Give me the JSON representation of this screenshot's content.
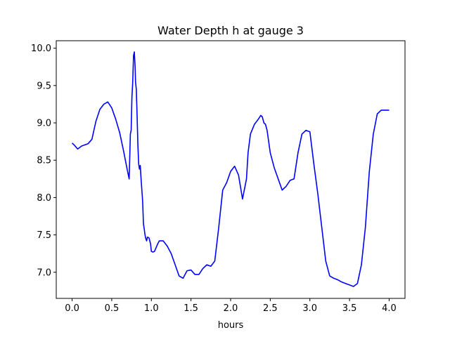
{
  "chart_data": {
    "type": "line",
    "title": "Water Depth h at gauge 3",
    "xlabel": "hours",
    "ylabel": "",
    "xlim": [
      -0.2,
      4.2
    ],
    "ylim": [
      6.65,
      10.1
    ],
    "grid": false,
    "x_ticks": [
      0.0,
      0.5,
      1.0,
      1.5,
      2.0,
      2.5,
      3.0,
      3.5,
      4.0
    ],
    "x_tick_labels": [
      "0.0",
      "0.5",
      "1.0",
      "1.5",
      "2.0",
      "2.5",
      "3.0",
      "3.5",
      "4.0"
    ],
    "y_ticks": [
      7.0,
      7.5,
      8.0,
      8.5,
      9.0,
      9.5,
      10.0
    ],
    "y_tick_labels": [
      "7.0",
      "7.5",
      "8.0",
      "8.5",
      "9.0",
      "9.5",
      "10.0"
    ],
    "series": [
      {
        "color": "#0000ff",
        "x": [
          0.0,
          0.03,
          0.07,
          0.12,
          0.2,
          0.25,
          0.3,
          0.35,
          0.4,
          0.45,
          0.5,
          0.55,
          0.6,
          0.65,
          0.7,
          0.72,
          0.735,
          0.745,
          0.755,
          0.765,
          0.775,
          0.785,
          0.795,
          0.8,
          0.81,
          0.82,
          0.83,
          0.84,
          0.85,
          0.86,
          0.87,
          0.88,
          0.89,
          0.9,
          0.91,
          0.92,
          0.93,
          0.94,
          0.95,
          0.97,
          0.99,
          1.0,
          1.02,
          1.04,
          1.06,
          1.08,
          1.1,
          1.15,
          1.2,
          1.25,
          1.3,
          1.35,
          1.4,
          1.45,
          1.5,
          1.55,
          1.6,
          1.65,
          1.7,
          1.75,
          1.8,
          1.85,
          1.9,
          1.95,
          2.0,
          2.05,
          2.1,
          2.15,
          2.2,
          2.22,
          2.25,
          2.3,
          2.35,
          2.38,
          2.4,
          2.42,
          2.44,
          2.46,
          2.5,
          2.55,
          2.6,
          2.65,
          2.7,
          2.75,
          2.8,
          2.85,
          2.9,
          2.95,
          3.0,
          3.05,
          3.1,
          3.15,
          3.2,
          3.25,
          3.3,
          3.35,
          3.4,
          3.45,
          3.5,
          3.55,
          3.6,
          3.65,
          3.7,
          3.75,
          3.8,
          3.85,
          3.9,
          3.95,
          4.0
        ],
        "y": [
          8.73,
          8.7,
          8.65,
          8.69,
          8.72,
          8.78,
          9.02,
          9.18,
          9.25,
          9.28,
          9.2,
          9.05,
          8.87,
          8.62,
          8.35,
          8.25,
          8.85,
          8.9,
          9.35,
          9.55,
          9.9,
          9.95,
          9.75,
          9.55,
          9.45,
          9.1,
          8.7,
          8.45,
          8.38,
          8.43,
          8.25,
          8.1,
          7.95,
          7.65,
          7.58,
          7.5,
          7.45,
          7.42,
          7.47,
          7.46,
          7.38,
          7.28,
          7.27,
          7.28,
          7.33,
          7.38,
          7.42,
          7.42,
          7.35,
          7.25,
          7.1,
          6.95,
          6.92,
          7.02,
          7.03,
          6.97,
          6.97,
          7.05,
          7.1,
          7.08,
          7.15,
          7.6,
          8.1,
          8.2,
          8.35,
          8.42,
          8.3,
          7.98,
          8.25,
          8.6,
          8.85,
          8.98,
          9.05,
          9.1,
          9.08,
          9.0,
          8.98,
          8.9,
          8.6,
          8.4,
          8.25,
          8.1,
          8.15,
          8.23,
          8.25,
          8.6,
          8.85,
          8.9,
          8.88,
          8.45,
          8.05,
          7.6,
          7.15,
          6.95,
          6.92,
          6.9,
          6.87,
          6.85,
          6.83,
          6.81,
          6.85,
          7.1,
          7.6,
          8.35,
          8.85,
          9.12,
          9.17,
          9.17,
          9.17
        ]
      }
    ]
  }
}
